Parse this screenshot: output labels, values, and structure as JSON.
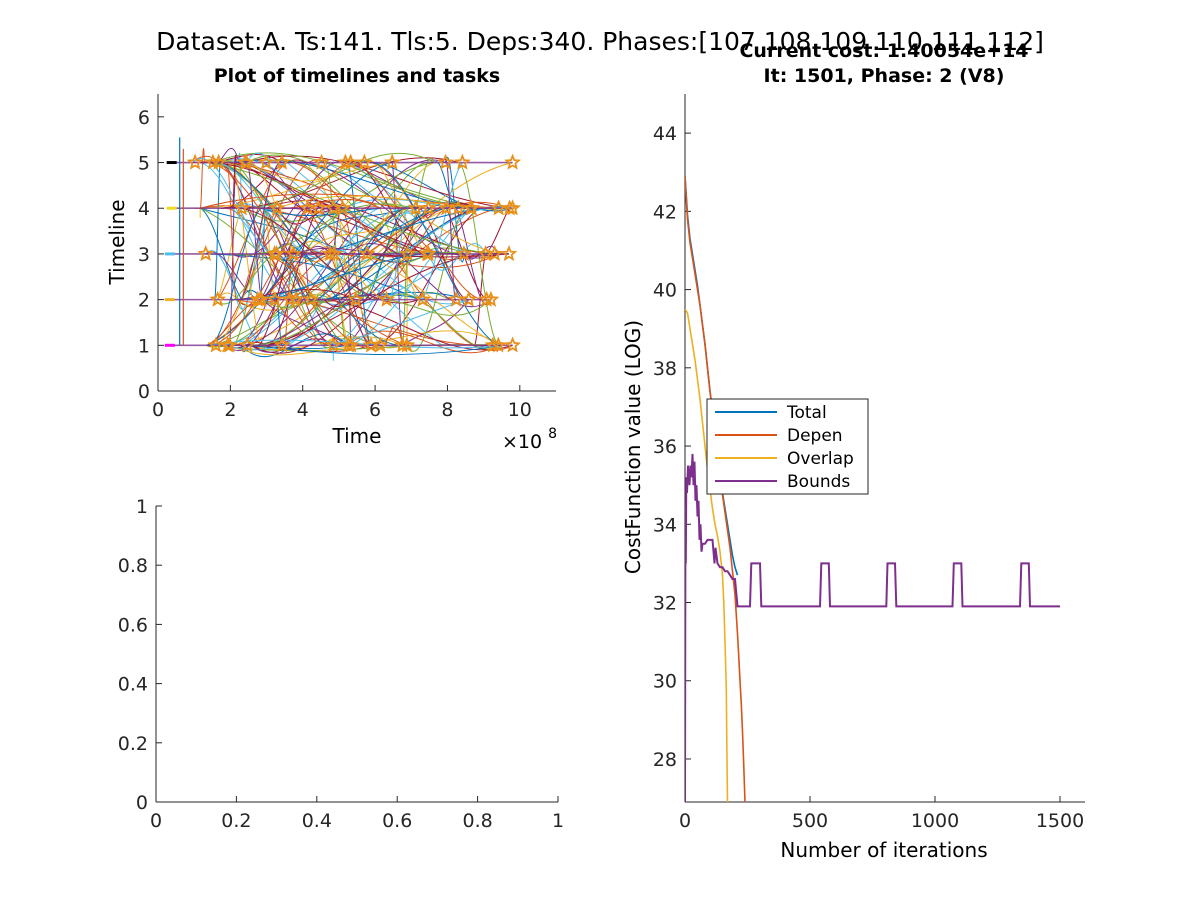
{
  "figure": {
    "suptitle": "Dataset:A. Ts:141. Tls:5. Deps:340. Phases:[107 108 109 110 111 112]",
    "background": "#ffffff"
  },
  "chart_data": [
    {
      "type": "line",
      "panel": "top-left",
      "title": "Plot of timelines and tasks",
      "xlabel": "Time",
      "ylabel": "Timeline",
      "x_exponent_label": "×10",
      "x_exponent_power": "8",
      "xlim": [
        0,
        11
      ],
      "ylim": [
        0,
        6.5
      ],
      "xticks": [
        0,
        2,
        4,
        6,
        8,
        10
      ],
      "xtick_labels": [
        "0",
        "2",
        "4",
        "6",
        "8",
        "10"
      ],
      "yticks": [
        0,
        1,
        2,
        3,
        4,
        5,
        6
      ],
      "ytick_labels": [
        "0",
        "1",
        "2",
        "3",
        "4",
        "5",
        "6"
      ],
      "timelines": [
        1,
        2,
        3,
        4,
        5
      ],
      "timeline_x_start": [
        0.3,
        0.3,
        0.3,
        0.35,
        0.35
      ],
      "timeline_x_end": [
        9.8,
        9.2,
        9.7,
        9.8,
        9.8
      ],
      "task_marker": "star",
      "task_marker_color": "#E8901A",
      "series_colors": [
        "#0072BD",
        "#D95319",
        "#EDB120",
        "#7E2F8E",
        "#77AC30",
        "#4DBEEE",
        "#A2142F"
      ]
    },
    {
      "type": "empty",
      "panel": "bottom-left",
      "title": "",
      "xlim": [
        0,
        1
      ],
      "ylim": [
        0,
        1
      ],
      "xticks": [
        0,
        0.2,
        0.4,
        0.6,
        0.8,
        1
      ],
      "xtick_labels": [
        "0",
        "0.2",
        "0.4",
        "0.6",
        "0.8",
        "1"
      ],
      "yticks": [
        0,
        0.2,
        0.4,
        0.6,
        0.8,
        1
      ],
      "ytick_labels": [
        "0",
        "0.2",
        "0.4",
        "0.6",
        "0.8",
        "1"
      ]
    },
    {
      "type": "line",
      "panel": "right",
      "title": "Current cost: 1.40054e+14",
      "subtitle": "It: 1501, Phase: 2 (V8)",
      "xlabel": "Number of iterations",
      "ylabel": "CostFunction value (LOG)",
      "xlim": [
        0,
        1600
      ],
      "ylim": [
        26.9,
        45
      ],
      "xticks": [
        0,
        500,
        1000,
        1500
      ],
      "xtick_labels": [
        "0",
        "500",
        "1000",
        "1500"
      ],
      "yticks": [
        28,
        30,
        32,
        34,
        36,
        38,
        40,
        42,
        44
      ],
      "ytick_labels": [
        "28",
        "30",
        "32",
        "34",
        "36",
        "38",
        "40",
        "42",
        "44"
      ],
      "legend_position": "middle-left",
      "series": [
        {
          "name": "Total",
          "color": "#0072BD",
          "x": [
            0,
            5,
            10,
            20,
            30,
            40,
            50,
            60,
            70,
            80,
            90,
            100,
            110,
            120,
            130,
            140,
            150,
            160,
            170,
            180,
            190,
            200,
            210
          ],
          "y": [
            42.9,
            42.4,
            41.9,
            41.3,
            40.9,
            40.5,
            40.1,
            39.6,
            39.1,
            38.6,
            38.0,
            37.4,
            36.9,
            36.4,
            35.9,
            35.3,
            34.8,
            34.4,
            34.0,
            33.6,
            33.2,
            32.9,
            32.7
          ]
        },
        {
          "name": "Depen",
          "color": "#D95319",
          "x": [
            0,
            5,
            10,
            20,
            30,
            40,
            50,
            60,
            70,
            80,
            90,
            100,
            120,
            140,
            160,
            180,
            200,
            210,
            215,
            220,
            225,
            230,
            235,
            240
          ],
          "y": [
            42.9,
            42.3,
            41.8,
            41.2,
            40.8,
            40.4,
            40.0,
            39.6,
            39.1,
            38.6,
            38.0,
            37.4,
            36.4,
            35.2,
            34.3,
            33.4,
            32.2,
            31.2,
            30.6,
            30.0,
            29.4,
            28.7,
            27.8,
            26.9
          ]
        },
        {
          "name": "Overlap",
          "color": "#EDB120",
          "x": [
            0,
            10,
            20,
            30,
            40,
            50,
            60,
            70,
            80,
            90,
            100,
            110,
            120,
            130,
            140,
            150,
            155,
            160,
            165,
            168,
            170
          ],
          "y": [
            39.5,
            39.4,
            39.0,
            38.6,
            38.2,
            37.7,
            37.2,
            36.6,
            36.0,
            35.4,
            34.9,
            34.4,
            34.0,
            33.7,
            33.3,
            32.7,
            32.0,
            31.0,
            29.8,
            28.0,
            26.9
          ]
        },
        {
          "name": "Bounds",
          "color": "#7E2F8E",
          "x": [
            0,
            1,
            2,
            3,
            5,
            8,
            12,
            18,
            22,
            26,
            30,
            34,
            38,
            42,
            46,
            50,
            54,
            58,
            62,
            66,
            70,
            80,
            90,
            100,
            110,
            118,
            122,
            130,
            140,
            150,
            160,
            170,
            180,
            190,
            200,
            210,
            220,
            230,
            240,
            250,
            260,
            265,
            275,
            300,
            305,
            540,
            545,
            575,
            580,
            805,
            810,
            840,
            845,
            1070,
            1075,
            1105,
            1110,
            1340,
            1345,
            1375,
            1380,
            1500
          ],
          "y": [
            26.9,
            32.0,
            34.5,
            33.0,
            35.2,
            34.8,
            35.5,
            35.0,
            35.5,
            35.2,
            35.8,
            35.0,
            35.6,
            34.6,
            35.0,
            34.2,
            34.6,
            33.6,
            34.0,
            33.3,
            33.5,
            33.5,
            33.6,
            33.6,
            33.6,
            33.0,
            33.4,
            33.0,
            32.9,
            32.9,
            32.8,
            32.8,
            32.7,
            32.6,
            32.6,
            31.9,
            31.9,
            31.9,
            31.9,
            31.9,
            31.9,
            33.0,
            33.0,
            33.0,
            31.9,
            31.9,
            33.0,
            33.0,
            31.9,
            31.9,
            33.0,
            33.0,
            31.9,
            31.9,
            33.0,
            33.0,
            31.9,
            31.9,
            33.0,
            33.0,
            31.9,
            31.9
          ]
        }
      ]
    }
  ]
}
